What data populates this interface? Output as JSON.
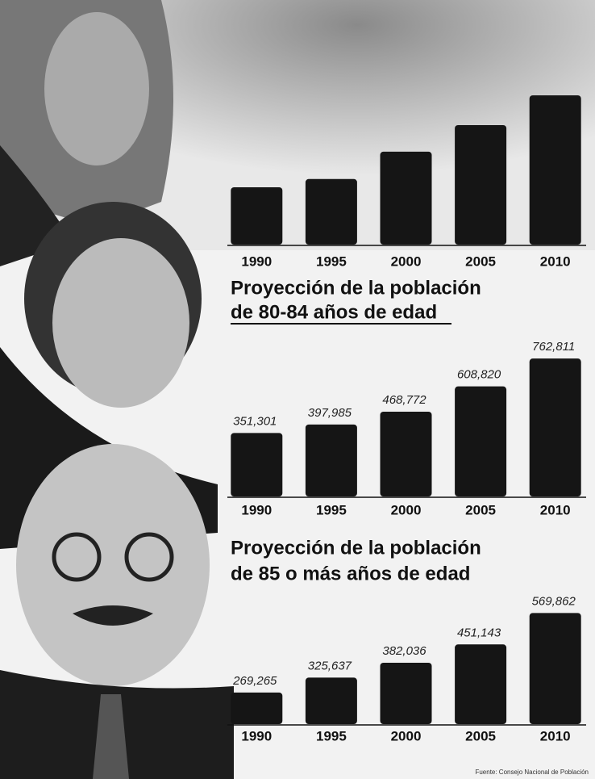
{
  "chart_data": [
    {
      "type": "bar",
      "categories": [
        "1990",
        "1995",
        "2000",
        "2005",
        "2010"
      ],
      "values": [
        350000,
        400000,
        567000,
        729000,
        911000
      ],
      "color": "#151515",
      "ylim": [
        0,
        1000000
      ]
    },
    {
      "type": "bar",
      "title": [
        "Proyección de la población",
        "de 80-84 años de edad"
      ],
      "categories": [
        "1990",
        "1995",
        "2000",
        "2005",
        "2010"
      ],
      "values": [
        351301,
        397985,
        468772,
        608820,
        762811
      ],
      "value_labels": [
        "351,301",
        "397,985",
        "468,772",
        "608,820",
        "762,811"
      ],
      "color": "#151515",
      "ylim": [
        0,
        960000
      ]
    },
    {
      "type": "bar",
      "title": [
        "Proyección de la población",
        "de 85 o más años de edad"
      ],
      "categories": [
        "1990",
        "1995",
        "2000",
        "2005",
        "2010"
      ],
      "values": [
        269265,
        325637,
        382036,
        451143,
        569862
      ],
      "value_labels": [
        "269,265",
        "325,637",
        "382,036",
        "451,143",
        "569,862"
      ],
      "color": "#151515",
      "ylim": [
        150000,
        690000
      ]
    }
  ],
  "source": "Fuente: Consejo Nacional de Población"
}
